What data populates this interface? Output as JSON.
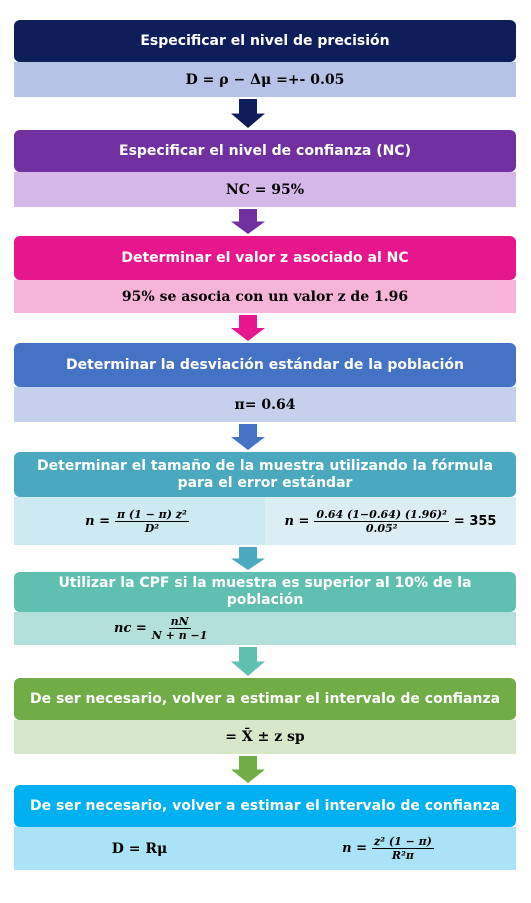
{
  "steps": [
    {
      "title": "Especificar el nivel de precisión",
      "cells": [
        {
          "text": "D = ρ − Δμ =+- 0.05"
        }
      ]
    },
    {
      "title": "Especificar el nivel de confianza (NC)",
      "cells": [
        {
          "text": "NC = 95%"
        }
      ]
    },
    {
      "title": "Determinar el valor z asociado al NC",
      "cells": [
        {
          "text": "95% se asocia con un valor z de 1.96"
        }
      ]
    },
    {
      "title": "Determinar la desviación estándar de la población",
      "cells": [
        {
          "text": "π= 0.64"
        }
      ]
    },
    {
      "title": "Determinar el tamaño de la muestra utilizando la fórmula para el error estándar",
      "cells": [
        {
          "lhs": "n =",
          "num": "π (1 − π) z²",
          "den": "D²"
        },
        {
          "lhs": "n =",
          "num": "0.64 (1−0.64) (1.96)²",
          "den": "0.05²",
          "rhs": "= 355"
        }
      ]
    },
    {
      "title": "Utilizar la CPF si la muestra es superior al 10% de la población",
      "cells": [
        {
          "lhs": "nc =",
          "num": "nN",
          "den": "N + n −1"
        }
      ]
    },
    {
      "title": "De ser necesario, volver a estimar el intervalo de confianza",
      "cells": [
        {
          "text": "= X̄ ± z sp"
        }
      ]
    },
    {
      "title": "De ser necesario, volver a estimar el intervalo de confianza",
      "cells": [
        {
          "text": "D = Rμ"
        },
        {
          "lhs": "n =",
          "num": "z² (1 − π)",
          "den": "R²π"
        }
      ]
    }
  ]
}
